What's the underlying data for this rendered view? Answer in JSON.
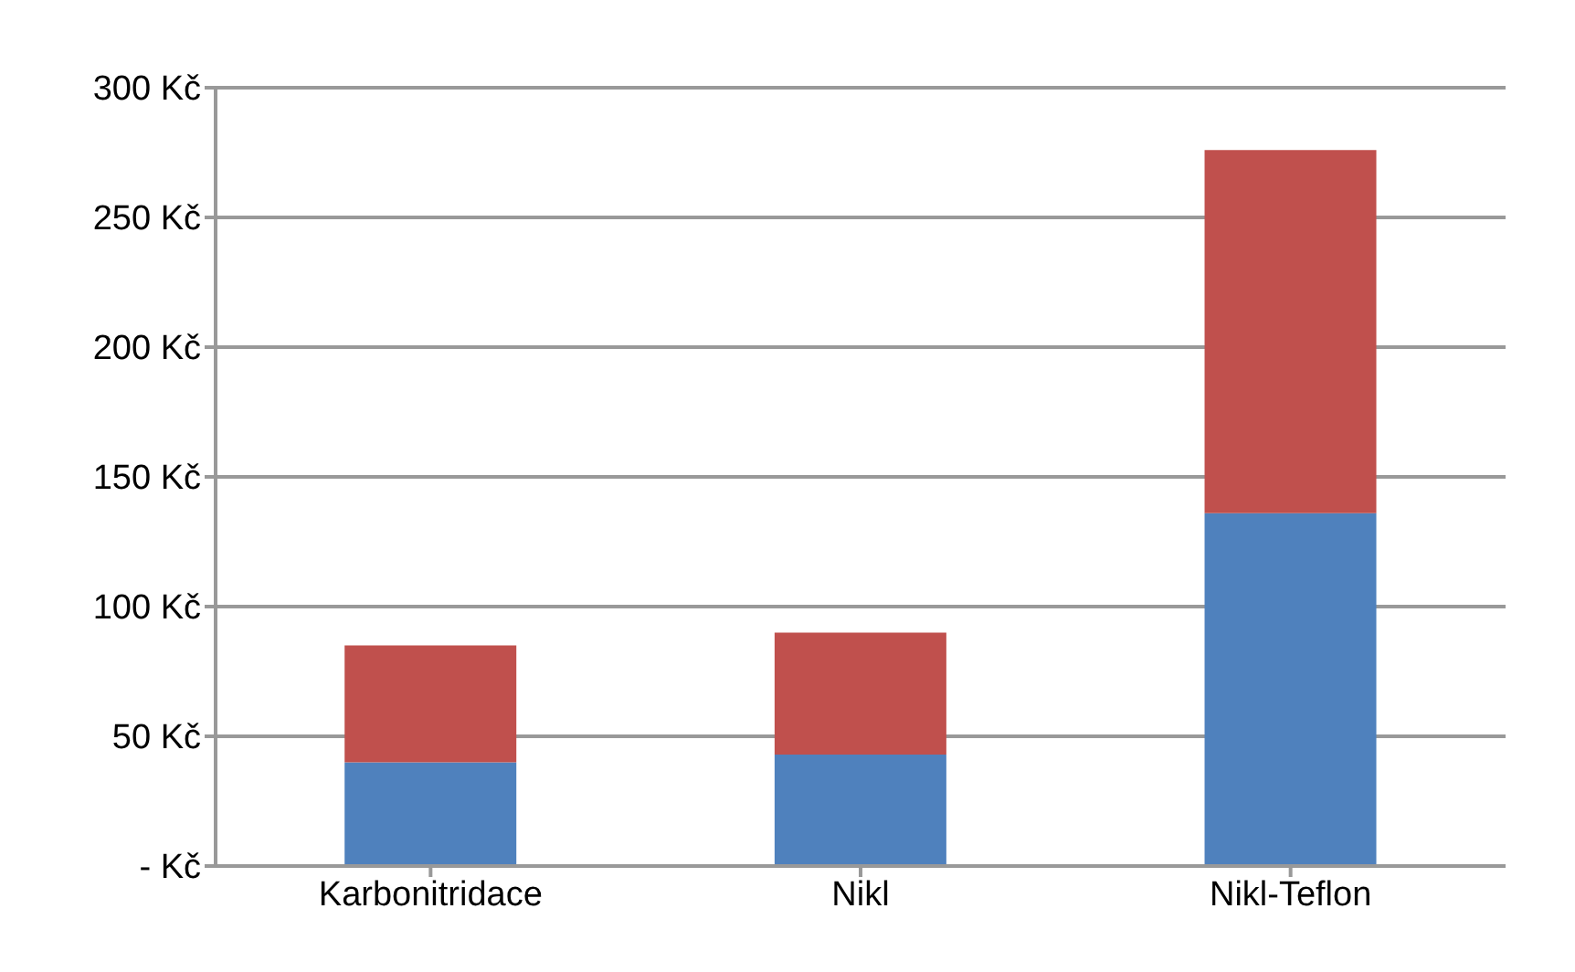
{
  "chart_data": {
    "type": "bar",
    "stacked": true,
    "categories": [
      "Karbonitridace",
      "Nikl",
      "Nikl-Teflon"
    ],
    "series": [
      {
        "color": "#4f81bd",
        "values": [
          40,
          43,
          136
        ]
      },
      {
        "color": "#c0504d",
        "values": [
          45,
          47,
          140
        ]
      }
    ],
    "ylim": [
      0,
      300
    ],
    "yticks": [
      {
        "value": 0,
        "label": "-   Kč"
      },
      {
        "value": 50,
        "label": "50 Kč"
      },
      {
        "value": 100,
        "label": "100 Kč"
      },
      {
        "value": 150,
        "label": "150 Kč"
      },
      {
        "value": 200,
        "label": "200 Kč"
      },
      {
        "value": 250,
        "label": "250 Kč"
      },
      {
        "value": 300,
        "label": "300 Kč"
      }
    ],
    "grid": "y",
    "legend": false
  }
}
